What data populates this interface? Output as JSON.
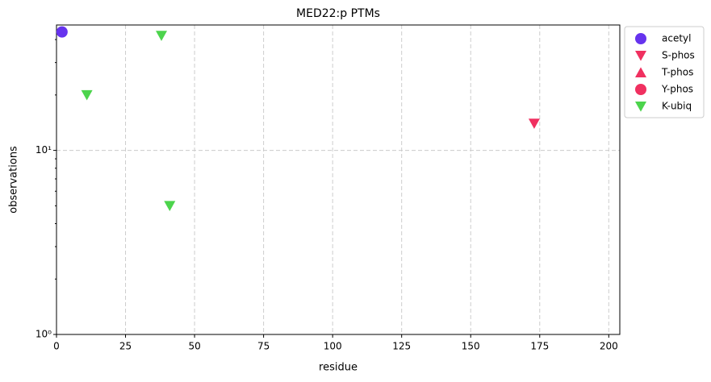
{
  "chart_data": {
    "type": "scatter",
    "title": "MED22:p PTMs",
    "x_label": "residue",
    "y_label": "observations",
    "xlim": [
      0,
      204
    ],
    "xticks": [
      0,
      25,
      50,
      75,
      100,
      125,
      150,
      175,
      200
    ],
    "ylim": [
      1,
      48
    ],
    "yticks": [
      {
        "value": 1,
        "label": "10⁰"
      },
      {
        "value": 10,
        "label": "10¹"
      }
    ],
    "yminorticks": [
      2,
      3,
      4,
      5,
      6,
      7,
      8,
      9,
      20,
      30,
      40
    ],
    "log_y": true,
    "grid": true,
    "legend": "outside upper right",
    "series": [
      {
        "name": "acetyl",
        "color": "#6633ee",
        "marker": "circle",
        "x": [
          2
        ],
        "values": [
          44
        ]
      },
      {
        "name": "S-phos",
        "color": "#f03060",
        "marker": "triangle-down",
        "x": [
          173
        ],
        "values": [
          14
        ]
      },
      {
        "name": "T-phos",
        "color": "#f03060",
        "marker": "triangle-up",
        "x": [],
        "values": []
      },
      {
        "name": "Y-phos",
        "color": "#f03060",
        "marker": "circle",
        "x": [],
        "values": []
      },
      {
        "name": "K-ubiq",
        "color": "#4cd44c",
        "marker": "triangle-down",
        "x": [
          11,
          38,
          41
        ],
        "values": [
          20,
          42,
          5
        ]
      }
    ]
  }
}
